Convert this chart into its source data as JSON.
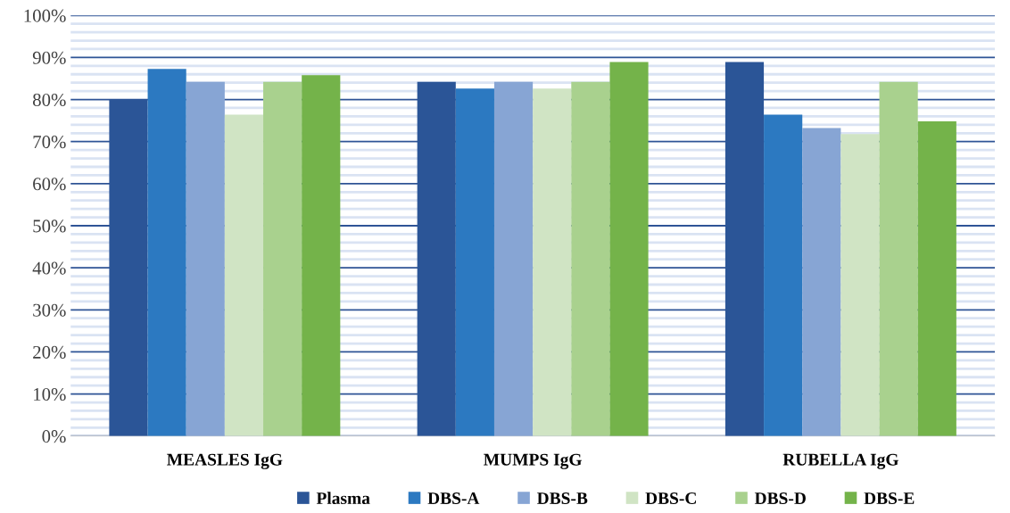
{
  "chart_data": {
    "type": "bar",
    "categories": [
      "MEASLES IgG",
      "MUMPS IgG",
      "RUBELLA IgG"
    ],
    "series": [
      {
        "name": "Plasma",
        "color": "#2b5597",
        "values": [
          80.0,
          84.2,
          88.9
        ]
      },
      {
        "name": "DBS-A",
        "color": "#2c79c1",
        "values": [
          87.3,
          82.6,
          76.4
        ]
      },
      {
        "name": "DBS-B",
        "color": "#87a5d4",
        "values": [
          84.2,
          84.2,
          73.2
        ]
      },
      {
        "name": "DBS-C",
        "color": "#d0e4c4",
        "values": [
          76.4,
          82.6,
          71.8
        ]
      },
      {
        "name": "DBS-D",
        "color": "#a9d18e",
        "values": [
          84.2,
          84.2,
          84.2
        ]
      },
      {
        "name": "DBS-E",
        "color": "#74b34a",
        "values": [
          85.8,
          88.9,
          74.8
        ]
      }
    ],
    "ylim": [
      0,
      100
    ],
    "yticks": [
      {
        "value": 0,
        "label": "0%"
      },
      {
        "value": 2,
        "label": null
      },
      {
        "value": 4,
        "label": null
      },
      {
        "value": 6,
        "label": null
      },
      {
        "value": 8,
        "label": null
      },
      {
        "value": 10,
        "label": "10%"
      },
      {
        "value": 12,
        "label": null
      },
      {
        "value": 14,
        "label": null
      },
      {
        "value": 16,
        "label": null
      },
      {
        "value": 18,
        "label": null
      },
      {
        "value": 20,
        "label": "20%"
      },
      {
        "value": 22,
        "label": null
      },
      {
        "value": 24,
        "label": null
      },
      {
        "value": 26,
        "label": null
      },
      {
        "value": 28,
        "label": null
      },
      {
        "value": 30,
        "label": "30%"
      },
      {
        "value": 32,
        "label": null
      },
      {
        "value": 34,
        "label": null
      },
      {
        "value": 36,
        "label": null
      },
      {
        "value": 38,
        "label": null
      },
      {
        "value": 40,
        "label": "40%"
      },
      {
        "value": 42,
        "label": null
      },
      {
        "value": 44,
        "label": null
      },
      {
        "value": 46,
        "label": null
      },
      {
        "value": 48,
        "label": null
      },
      {
        "value": 50,
        "label": "50%"
      },
      {
        "value": 52,
        "label": null
      },
      {
        "value": 54,
        "label": null
      },
      {
        "value": 56,
        "label": null
      },
      {
        "value": 58,
        "label": null
      },
      {
        "value": 60,
        "label": "60%"
      },
      {
        "value": 62,
        "label": null
      },
      {
        "value": 64,
        "label": null
      },
      {
        "value": 66,
        "label": null
      },
      {
        "value": 68,
        "label": null
      },
      {
        "value": 70,
        "label": "70%"
      },
      {
        "value": 72,
        "label": null
      },
      {
        "value": 74,
        "label": null
      },
      {
        "value": 76,
        "label": null
      },
      {
        "value": 78,
        "label": null
      },
      {
        "value": 80,
        "label": "80%"
      },
      {
        "value": 82,
        "label": null
      },
      {
        "value": 84,
        "label": null
      },
      {
        "value": 86,
        "label": null
      },
      {
        "value": 88,
        "label": null
      },
      {
        "value": 90,
        "label": "90%"
      },
      {
        "value": 92,
        "label": null
      },
      {
        "value": 94,
        "label": null
      },
      {
        "value": 96,
        "label": null
      },
      {
        "value": 98,
        "label": null
      },
      {
        "value": 100,
        "label": "100%"
      }
    ],
    "grid": true,
    "legend": "bottom"
  }
}
